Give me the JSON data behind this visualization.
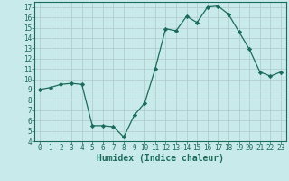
{
  "x": [
    0,
    1,
    2,
    3,
    4,
    5,
    6,
    7,
    8,
    9,
    10,
    11,
    12,
    13,
    14,
    15,
    16,
    17,
    18,
    19,
    20,
    21,
    22,
    23
  ],
  "y": [
    9.0,
    9.2,
    9.5,
    9.6,
    9.5,
    5.5,
    5.5,
    5.4,
    4.4,
    6.5,
    7.7,
    11.0,
    14.9,
    14.7,
    16.1,
    15.5,
    17.0,
    17.1,
    16.3,
    14.6,
    12.9,
    10.7,
    10.3,
    10.7
  ],
  "line_color": "#1a6b5a",
  "marker": "D",
  "marker_size": 2.2,
  "bg_color": "#c8eaea",
  "grid_color": "#b0c8c8",
  "xlabel": "Humidex (Indice chaleur)",
  "xlim": [
    -0.5,
    23.5
  ],
  "ylim": [
    4,
    17.5
  ],
  "yticks": [
    4,
    5,
    6,
    7,
    8,
    9,
    10,
    11,
    12,
    13,
    14,
    15,
    16,
    17
  ],
  "xticks": [
    0,
    1,
    2,
    3,
    4,
    5,
    6,
    7,
    8,
    9,
    10,
    11,
    12,
    13,
    14,
    15,
    16,
    17,
    18,
    19,
    20,
    21,
    22,
    23
  ],
  "tick_fontsize": 5.5,
  "label_fontsize": 7
}
